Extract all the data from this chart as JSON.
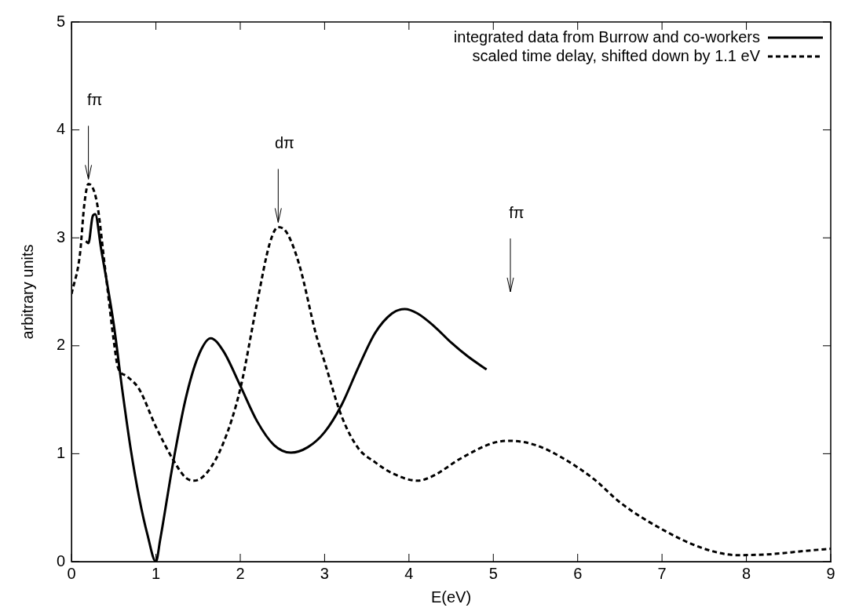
{
  "chart_data": {
    "type": "line",
    "xlabel": "E(eV)",
    "ylabel": "arbitrary units",
    "xlim": [
      0,
      9
    ],
    "xticks": [
      0,
      1,
      2,
      3,
      4,
      5,
      6,
      7,
      8,
      9
    ],
    "ylim": [
      0,
      5
    ],
    "yticks": [
      0,
      1,
      2,
      3,
      4,
      5
    ],
    "grid": false,
    "legend": "top right",
    "marker": "none",
    "series": [
      {
        "name": "integrated data from Burrow and co-workers",
        "color": "#000000",
        "line_style": "solid",
        "x": [
          0.17,
          0.2,
          0.25,
          0.28,
          0.35,
          0.5,
          0.6,
          0.7,
          0.8,
          0.9,
          1.0,
          1.05,
          1.2,
          1.35,
          1.5,
          1.65,
          1.8,
          2.0,
          2.2,
          2.4,
          2.6,
          2.8,
          3.0,
          3.2,
          3.4,
          3.6,
          3.8,
          3.95,
          4.1,
          4.3,
          4.5,
          4.7,
          4.92
        ],
        "values": [
          2.97,
          2.95,
          3.2,
          3.22,
          2.9,
          2.2,
          1.6,
          1.05,
          0.6,
          0.25,
          0.0,
          0.2,
          0.9,
          1.5,
          1.9,
          2.07,
          1.95,
          1.63,
          1.3,
          1.08,
          1.01,
          1.06,
          1.2,
          1.45,
          1.8,
          2.12,
          2.3,
          2.34,
          2.3,
          2.18,
          2.03,
          1.9,
          1.78
        ]
      },
      {
        "name": "scaled time delay, shifted down by 1.1 eV",
        "color": "#000000",
        "line_style": "dashed",
        "x": [
          0,
          0.1,
          0.15,
          0.2,
          0.3,
          0.4,
          0.5,
          0.55,
          0.65,
          0.8,
          1.0,
          1.2,
          1.35,
          1.45,
          1.6,
          1.8,
          2.0,
          2.2,
          2.35,
          2.45,
          2.55,
          2.7,
          2.9,
          3.0,
          3.2,
          3.4,
          3.6,
          3.8,
          4.1,
          4.3,
          4.6,
          5.0,
          5.2,
          5.5,
          5.8,
          6.2,
          6.5,
          7.0,
          7.5,
          7.9,
          8.3,
          8.7,
          9.0
        ],
        "values": [
          2.48,
          2.85,
          3.3,
          3.5,
          3.33,
          2.7,
          2.05,
          1.8,
          1.72,
          1.6,
          1.25,
          0.95,
          0.78,
          0.75,
          0.82,
          1.1,
          1.6,
          2.4,
          2.95,
          3.1,
          3.05,
          2.75,
          2.1,
          1.85,
          1.35,
          1.05,
          0.92,
          0.82,
          0.75,
          0.8,
          0.95,
          1.1,
          1.12,
          1.08,
          0.97,
          0.76,
          0.55,
          0.3,
          0.12,
          0.06,
          0.07,
          0.1,
          0.12
        ]
      }
    ],
    "annotations": [
      {
        "text": "fπ",
        "x": 0.2,
        "y": 3.5
      },
      {
        "text": "dπ",
        "x": 2.45,
        "y": 3.1
      },
      "fπ"
    ]
  }
}
